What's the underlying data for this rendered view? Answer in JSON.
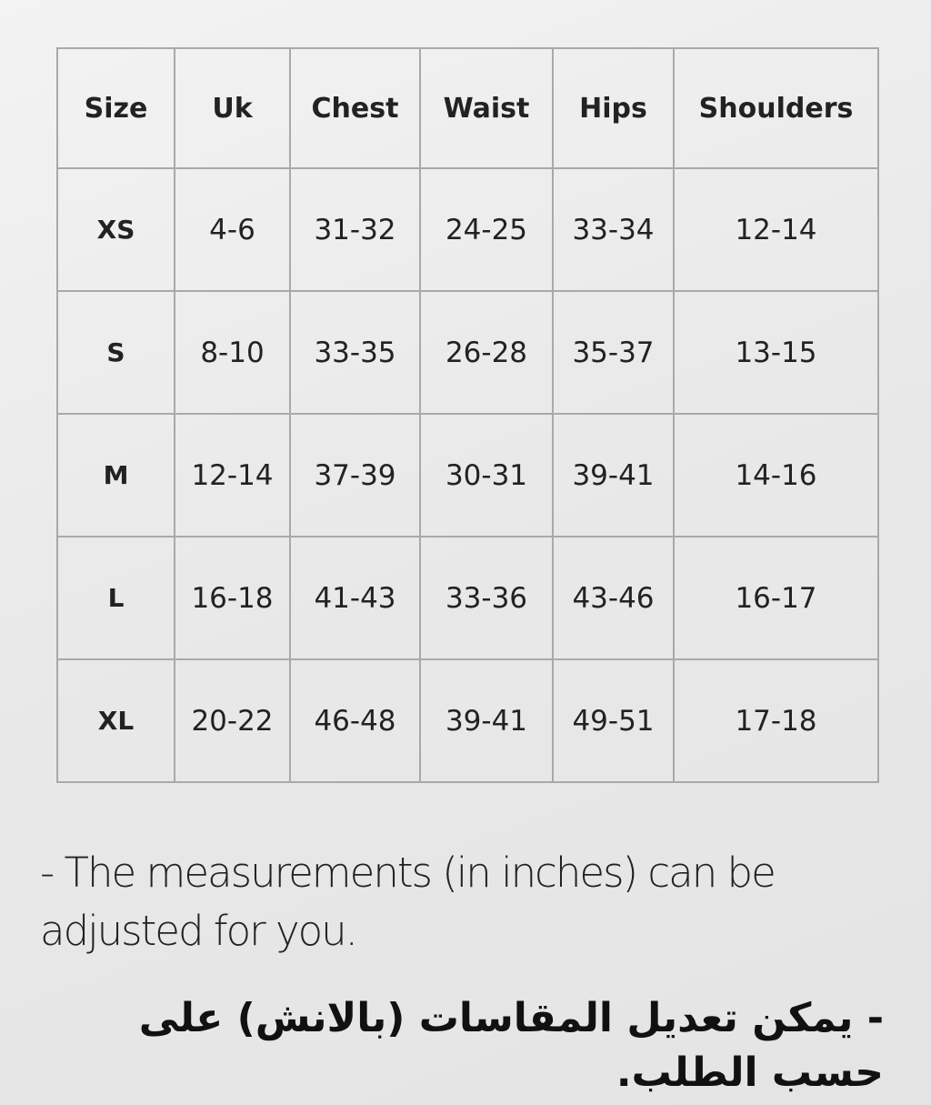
{
  "table": {
    "headers": [
      "Size",
      "Uk",
      "Chest",
      "Waist",
      "Hips",
      "Shoulders"
    ],
    "rows": [
      [
        "XS",
        "4-6",
        "31-32",
        "24-25",
        "33-34",
        "12-14"
      ],
      [
        "S",
        "8-10",
        "33-35",
        "26-28",
        "35-37",
        "13-15"
      ],
      [
        "M",
        "12-14",
        "37-39",
        "30-31",
        "39-41",
        "14-16"
      ],
      [
        "L",
        "16-18",
        "41-43",
        "33-36",
        "43-46",
        "16-17"
      ],
      [
        "XL",
        "20-22",
        "46-48",
        "39-41",
        "49-51",
        "17-18"
      ]
    ]
  },
  "note_en": "- The measurements (in inches) can be adjusted for you.",
  "note_ar": "- يمكن تعديل المقاسات (بالانش) على حسب الطلب."
}
